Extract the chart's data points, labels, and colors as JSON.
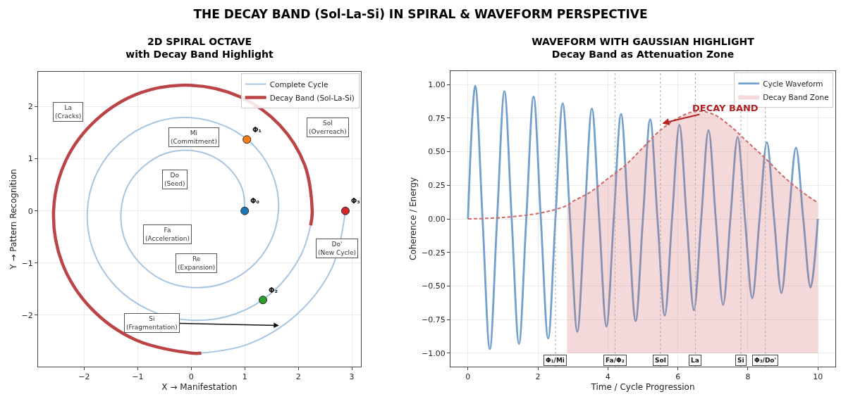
{
  "chart_data": [
    {
      "type": "line",
      "title": "2D SPIRAL OCTAVE",
      "subtitle": "with Decay Band Highlight",
      "xlabel": "X → Manifestation",
      "ylabel": "Y → Pattern Recognition",
      "annotations": [
        "THE DECAY BAND (Sol-La-Si) IN SPIRAL & WAVEFORM PERSPECTIVE",
        "Do\n(Seed)",
        "Re\n(Expansion)",
        "Mi\n(Commitment)",
        "Fa\n(Acceleration)",
        "Sol\n(Overreach)",
        "La\n(Cracks)",
        {
          "text": "Si\n(Fragmentation)",
          "x": 1.64,
          "y": -2.2
        },
        "Do'\n(New Cycle)"
      ],
      "series": [
        {
          "name": "Complete Cycle",
          "color": "#a8c5df",
          "x": [
            1.0,
            0.96,
            0.76,
            0.43,
            0.0,
            -0.46,
            -0.87,
            -1.18,
            -1.31,
            -1.25,
            -0.98,
            -0.55,
            0.0,
            0.58,
            1.1,
            1.47,
            1.63,
            1.54,
            1.21,
            0.67,
            0.0,
            -0.7,
            -1.32,
            -1.76,
            -1.94,
            -1.83,
            -1.43,
            -0.79,
            0.0,
            0.82,
            1.54,
            2.05,
            2.23,
            null,
            0.19,
            1.06,
            1.98,
            2.63,
            2.88
          ],
          "values": [
            0.0,
            0.4,
            0.76,
            1.03,
            1.16,
            1.11,
            0.87,
            0.49,
            0.0,
            -0.52,
            -0.98,
            -1.32,
            -1.47,
            -1.4,
            -1.1,
            -0.61,
            0.0,
            0.64,
            1.21,
            1.61,
            1.79,
            1.69,
            1.32,
            0.73,
            0.0,
            -0.76,
            -1.43,
            -1.9,
            -2.1,
            -1.98,
            -1.54,
            -0.85,
            -0.28,
            null,
            -2.73,
            -2.56,
            -1.98,
            -1.09,
            0.0
          ]
        },
        {
          "name": "Decay Band (Sol-La-Si)",
          "color": "#bb4446",
          "x": [
            2.23,
            2.26,
            2.12,
            1.65,
            0.91,
            0.0,
            -0.94,
            -1.76,
            -2.34,
            -2.57,
            -2.41,
            -1.87,
            -1.03,
            0.0,
            0.19
          ],
          "values": [
            -0.28,
            0.0,
            0.88,
            1.65,
            2.19,
            2.41,
            2.27,
            1.76,
            0.97,
            0.0,
            -1.0,
            -1.87,
            -2.48,
            -2.73,
            -2.73
          ]
        },
        {
          "type": "scatter",
          "colors": [
            "#1f77b4",
            "#ff7f0e",
            "#2ca02c",
            "#d62728"
          ],
          "x": [
            1.0,
            1.04,
            1.34,
            2.88
          ],
          "values": [
            0.0,
            1.37,
            -1.71,
            0.0
          ],
          "value_labels": [
            "Φ₀",
            "Φ₁",
            "Φ₂",
            "Φ₃"
          ]
        }
      ],
      "xlim": [
        -2.86,
        3.17
      ],
      "ylim": [
        -2.99,
        2.67
      ],
      "xticks": [
        {
          "value": -2,
          "label": "−2"
        },
        {
          "value": -1,
          "label": "−1"
        },
        0,
        1,
        2,
        3
      ],
      "yticks": [
        {
          "value": -2,
          "label": "−2"
        },
        {
          "value": -1,
          "label": "−1"
        },
        0,
        1,
        2
      ],
      "grid": true,
      "legend": "top right"
    },
    {
      "type": "line",
      "title": "WAVEFORM WITH GAUSSIAN HIGHLIGHT",
      "subtitle": "Decay Band as Attenuation Zone",
      "xlabel": "Time / Cycle Progression",
      "ylabel": "Coherence / Energy",
      "annotations": [
        {
          "text": "DECAY BAND",
          "x": 5.55,
          "y": 0.71
        }
      ],
      "series": [
        {
          "name": "Cycle Waveform",
          "color": "#729fcb",
          "x": [
            0,
            0.208,
            0.417,
            0.625,
            0.833,
            1.042,
            1.25,
            1.458,
            1.667,
            1.875,
            2.083,
            2.292,
            2.5,
            2.708,
            2.917,
            3.125,
            3.333,
            3.542,
            3.75,
            3.958,
            4.167,
            4.375,
            4.583,
            4.792,
            5,
            5.208,
            5.417,
            5.625,
            5.833,
            6.042,
            6.25,
            6.458,
            6.667,
            6.875,
            7.083,
            7.292,
            7.5,
            7.708,
            7.917,
            8.125,
            8.333,
            8.542,
            8.75,
            8.958,
            9.167,
            9.375,
            9.583,
            9.792,
            10
          ],
          "values": [
            0,
            0.99,
            0,
            -0.97,
            0,
            0.95,
            0,
            -0.93,
            0,
            0.91,
            0,
            -0.89,
            0,
            0.86,
            0,
            -0.84,
            0,
            0.82,
            0,
            -0.8,
            0,
            0.78,
            0,
            -0.76,
            0,
            0.74,
            0,
            -0.72,
            0,
            0.7,
            0,
            -0.68,
            0,
            0.66,
            0,
            -0.64,
            0,
            0.61,
            0,
            -0.59,
            0,
            0.57,
            0,
            -0.55,
            0,
            0.53,
            0,
            -0.51,
            0
          ]
        },
        {
          "name": "Decay Band Zone",
          "line_style": "dashed",
          "color": "#d06868",
          "x": [
            0,
            1,
            2,
            2.5,
            2.83,
            3,
            3.5,
            4,
            4.5,
            5,
            5.5,
            6,
            6.5,
            7,
            7.5,
            8,
            8.5,
            9,
            9.5,
            10
          ],
          "values": [
            0.0,
            0.01,
            0.04,
            0.07,
            0.1,
            0.13,
            0.2,
            0.3,
            0.4,
            0.53,
            0.66,
            0.75,
            0.8,
            0.78,
            0.69,
            0.57,
            0.45,
            0.32,
            0.21,
            0.12
          ],
          "lower": [
            null,
            null,
            null,
            null,
            -1,
            -1,
            -1,
            -1,
            -1,
            -1,
            -1,
            -1,
            -1,
            -1,
            -1,
            -1,
            -1,
            -1,
            -1,
            -1
          ],
          "upper": [
            null,
            null,
            null,
            null,
            0.1,
            0.13,
            0.2,
            0.3,
            0.4,
            0.53,
            0.66,
            0.75,
            0.8,
            0.78,
            0.69,
            0.57,
            0.45,
            0.32,
            0.21,
            0.12
          ]
        }
      ],
      "ref_lines": [
        {
          "axis": "x",
          "value": 2.5,
          "label": "Φ₁/Mi",
          "color": "#aaaaaa",
          "line_style": "dotted"
        },
        {
          "axis": "x",
          "value": 4.2,
          "label": "Fa/Φ₂",
          "color": "#aaaaaa",
          "line_style": "dotted"
        },
        {
          "axis": "x",
          "value": 5.5,
          "label": "Sol",
          "color": "#aaaaaa",
          "line_style": "dotted"
        },
        {
          "axis": "x",
          "value": 6.5,
          "label": "La",
          "color": "#aaaaaa",
          "line_style": "dotted"
        },
        {
          "axis": "x",
          "value": 7.8,
          "label": "Si",
          "color": "#aaaaaa",
          "line_style": "dotted"
        },
        {
          "axis": "x",
          "value": 8.5,
          "label": "Φ₃/Do'",
          "color": "#aaaaaa",
          "line_style": "dotted"
        }
      ],
      "xlim": [
        -0.5,
        10.5
      ],
      "ylim": [
        -1.1,
        1.1
      ],
      "xticks": [
        0,
        2,
        4,
        6,
        8,
        10
      ],
      "yticks": [
        {
          "value": -1,
          "label": "−1.00"
        },
        {
          "value": -0.75,
          "label": "−0.75"
        },
        {
          "value": -0.5,
          "label": "−0.50"
        },
        {
          "value": -0.25,
          "label": "−0.25"
        },
        {
          "value": 0,
          "label": "0.00"
        },
        {
          "value": 0.25,
          "label": "0.25"
        },
        {
          "value": 0.5,
          "label": "0.50"
        },
        {
          "value": 0.75,
          "label": "0.75"
        },
        {
          "value": 1,
          "label": "1.00"
        }
      ],
      "grid": true,
      "legend": "top right"
    }
  ]
}
